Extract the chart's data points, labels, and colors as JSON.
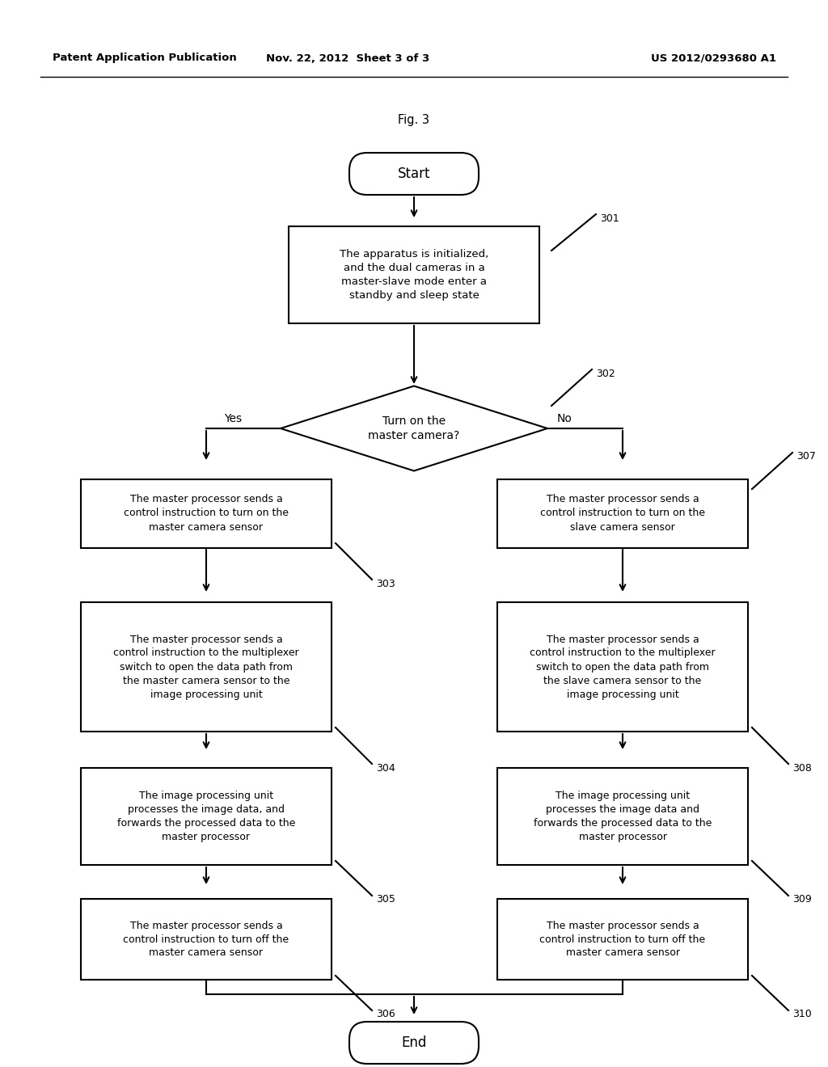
{
  "title": "Fig. 3",
  "header_left": "Patent Application Publication",
  "header_mid": "Nov. 22, 2012  Sheet 3 of 3",
  "header_right": "US 2012/0293680 A1",
  "start_text": "Start",
  "end_text": "End",
  "box301_text": "The apparatus is initialized,\nand the dual cameras in a\nmaster-slave mode enter a\nstandby and sleep state",
  "diamond302_text": "Turn on the\nmaster camera?",
  "box303_text": "The master processor sends a\ncontrol instruction to turn on the\nmaster camera sensor",
  "box307_text": "The master processor sends a\ncontrol instruction to turn on the\nslave camera sensor",
  "box304_text": "The master processor sends a\ncontrol instruction to the multiplexer\nswitch to open the data path from\nthe master camera sensor to the\nimage processing unit",
  "box308_text": "The master processor sends a\ncontrol instruction to the multiplexer\nswitch to open the data path from\nthe slave camera sensor to the\nimage processing unit",
  "box305_text": "The image processing unit\nprocesses the image data, and\nforwards the processed data to the\nmaster processor",
  "box309_text": "The image processing unit\nprocesses the image data and\nforwards the processed data to the\nmaster processor",
  "box306_text": "The master processor sends a\ncontrol instruction to turn off the\nmaster camera sensor",
  "box310_text": "The master processor sends a\ncontrol instruction to turn off the\nmaster camera sensor",
  "label_yes": "Yes",
  "label_no": "No",
  "bg_color": "#ffffff",
  "box_edge_color": "#000000",
  "text_color": "#000000",
  "arrow_color": "#000000",
  "header_line_color": "#000000"
}
